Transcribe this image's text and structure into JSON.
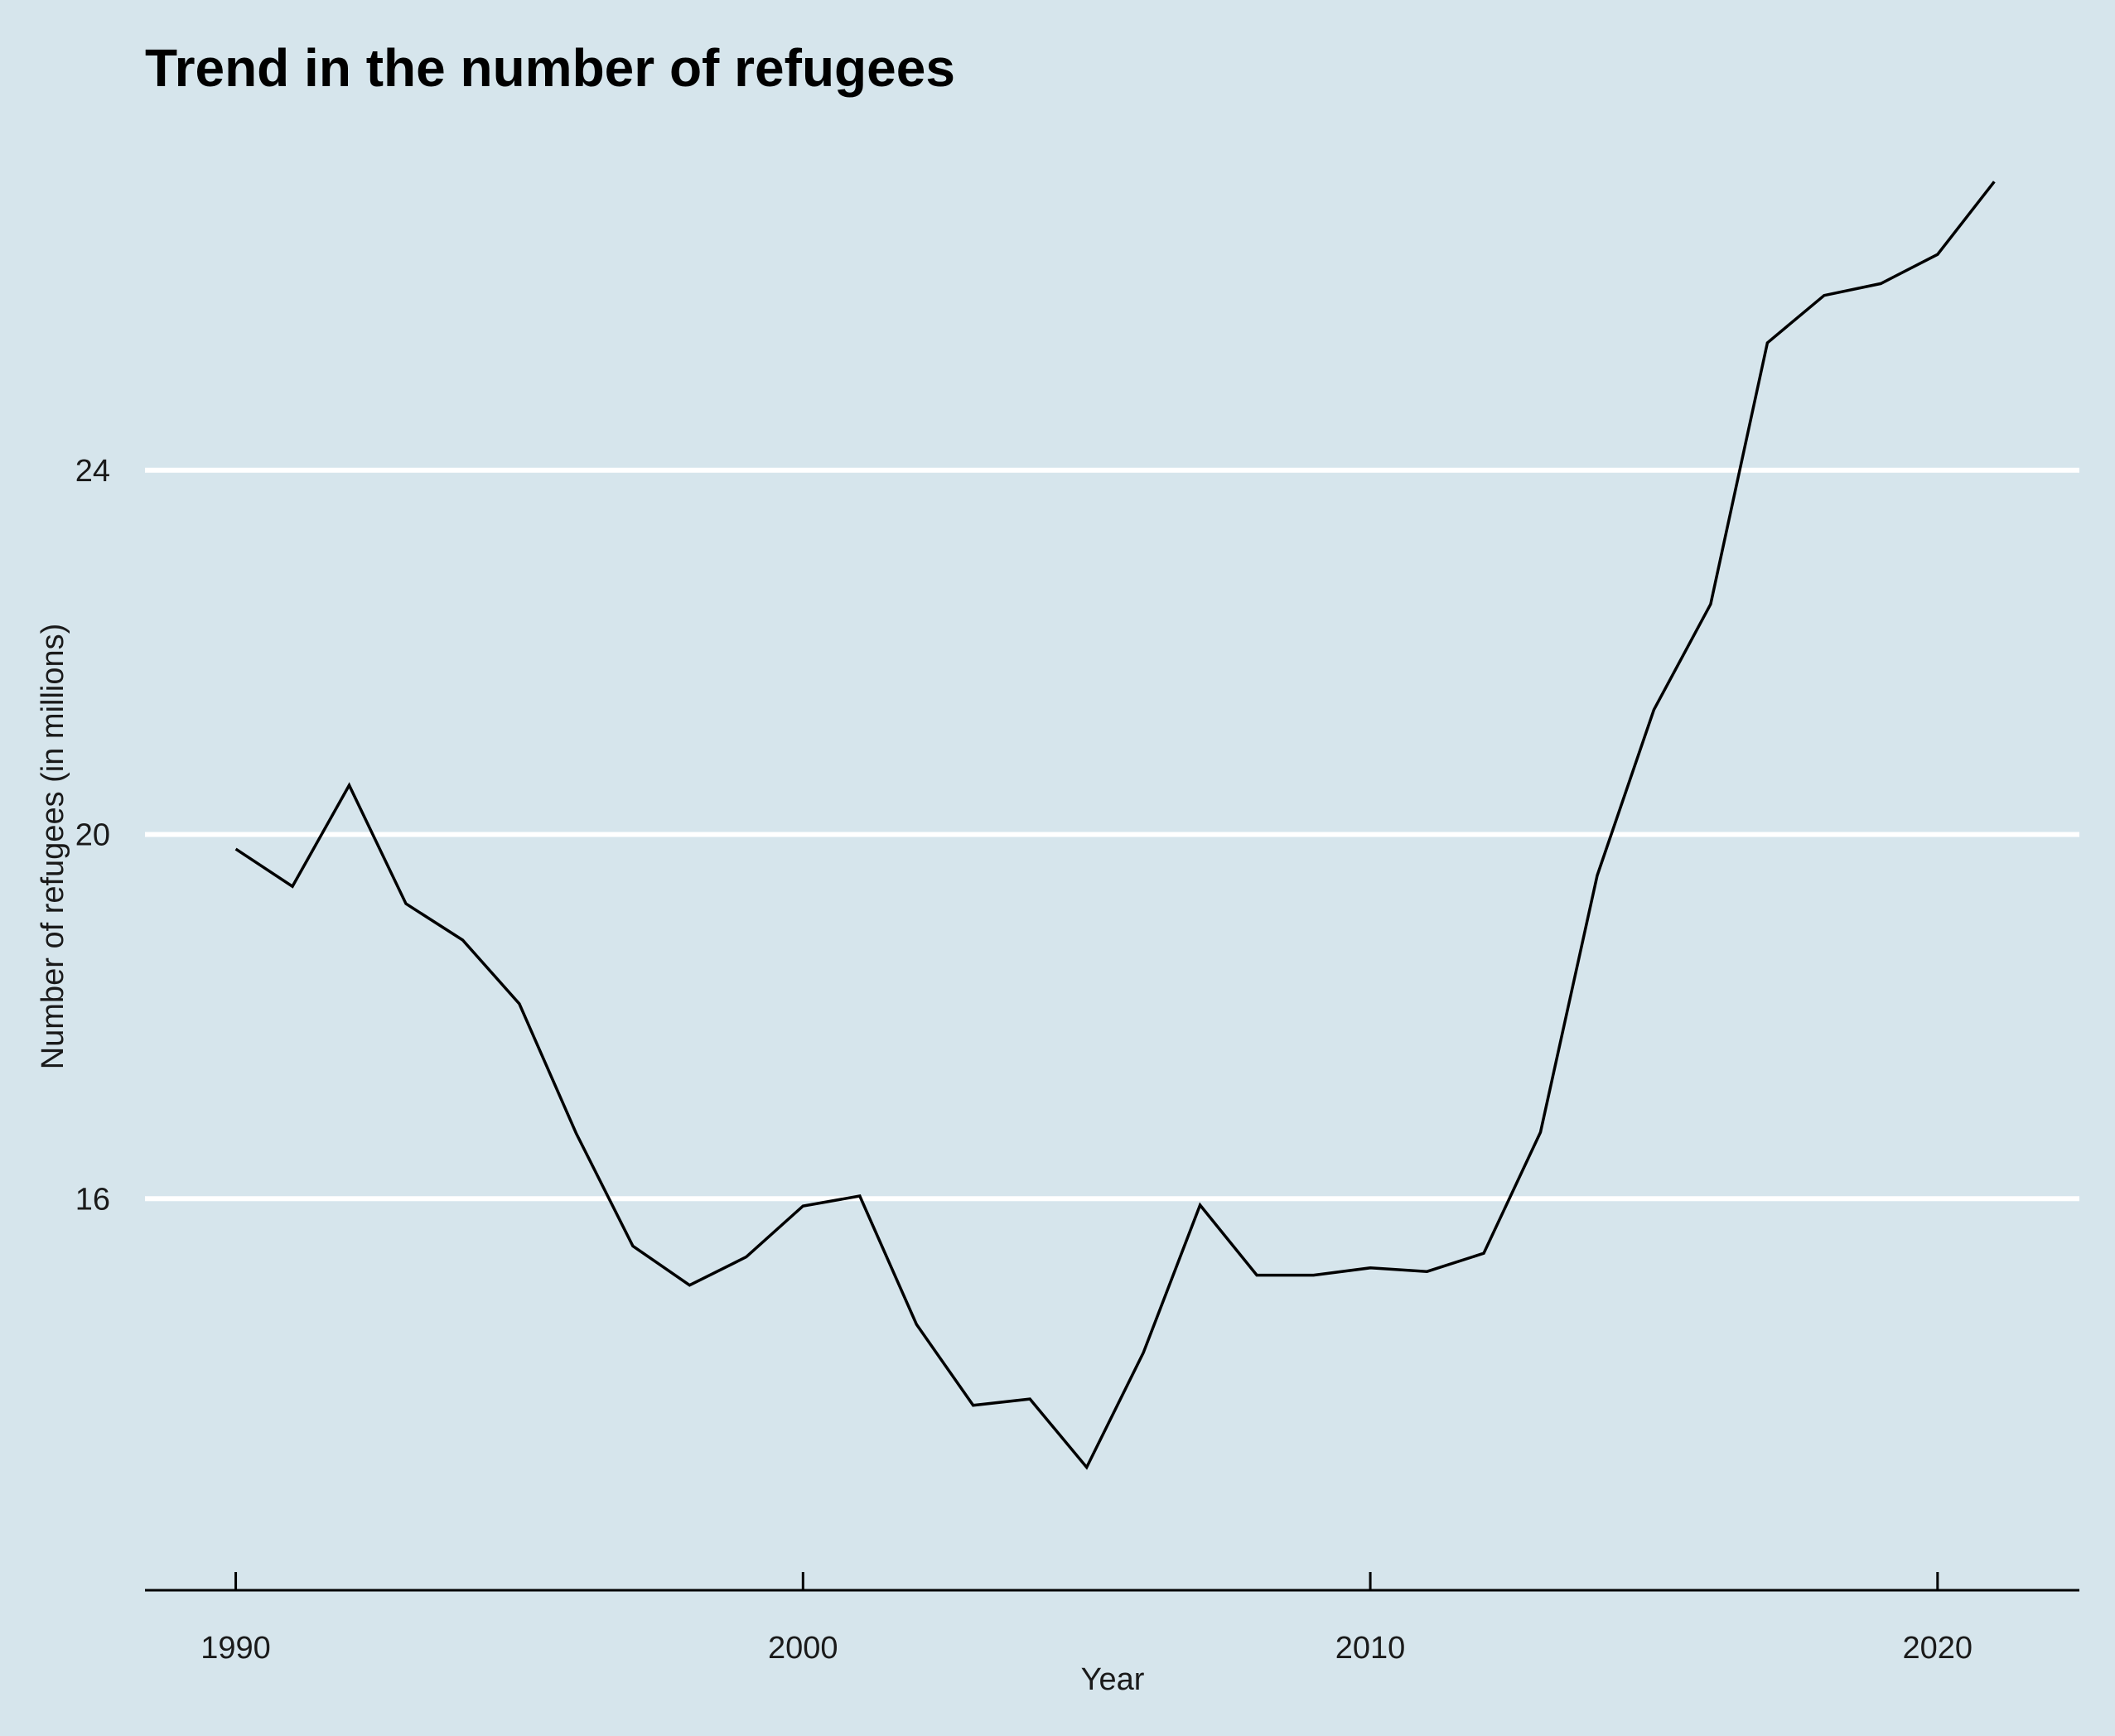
{
  "chart_data": {
    "type": "line",
    "title": "Trend in the number of refugees",
    "xlabel": "Year",
    "ylabel": "Number of refugees (in millions)",
    "xlim": [
      1988.4,
      2022.5
    ],
    "ylim": [
      11.7,
      27.8
    ],
    "x_ticks": [
      1990,
      2000,
      2010,
      2020
    ],
    "y_ticks": [
      16,
      20,
      24
    ],
    "grid": "horizontal major only",
    "legend": "none",
    "colors": {
      "background": "#d6e5ec",
      "line": "#000000",
      "grid": "#ffffff"
    },
    "series": [
      {
        "x": [
          1990,
          1991,
          1992,
          1993,
          1994,
          1995,
          1996,
          1997,
          1998,
          1999,
          2000,
          2001,
          2002,
          2003,
          2004,
          2005,
          2006,
          2007,
          2008,
          2009,
          2010,
          2011,
          2012,
          2013,
          2014,
          2015,
          2016,
          2017,
          2018,
          2019,
          2020,
          2021
        ],
        "values": [
          19.84,
          19.43,
          20.54,
          19.24,
          18.84,
          18.14,
          16.72,
          15.48,
          15.05,
          15.36,
          15.92,
          16.03,
          14.62,
          13.73,
          13.8,
          13.05,
          14.31,
          15.93,
          15.16,
          15.16,
          15.24,
          15.2,
          15.4,
          16.73,
          19.55,
          21.37,
          22.53,
          25.4,
          25.92,
          26.05,
          26.37,
          27.17
        ]
      }
    ]
  }
}
